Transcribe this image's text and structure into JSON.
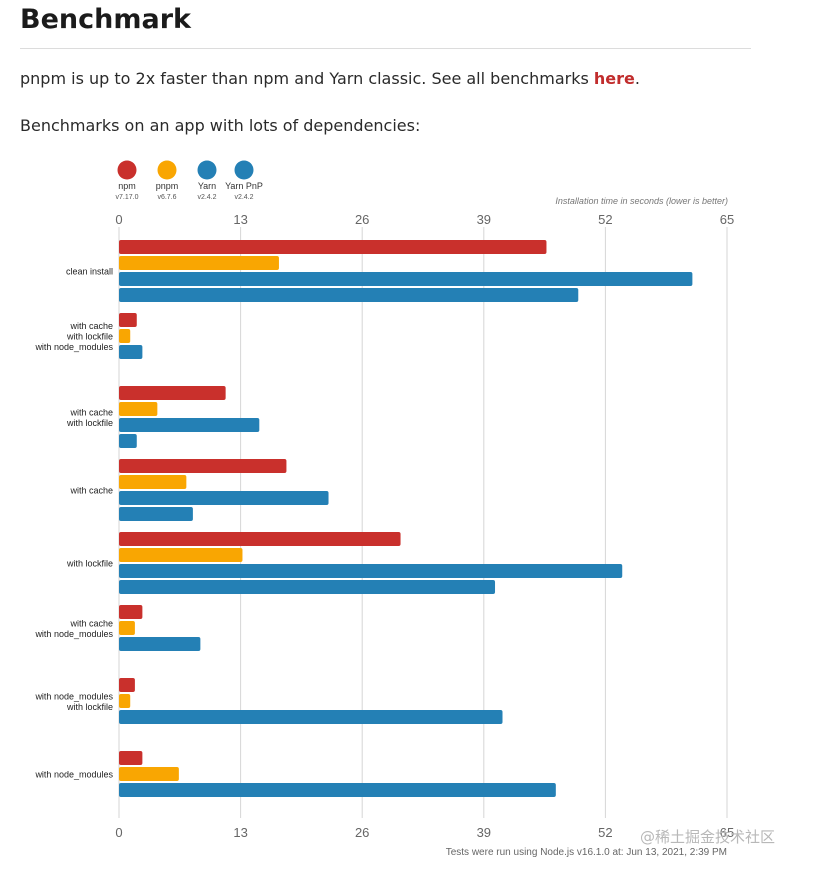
{
  "header": {
    "title": "Benchmark",
    "intro_text": "pnpm is up to 2x faster than npm and Yarn classic. See all benchmarks ",
    "intro_link": "here",
    "intro_end": ".",
    "subheading": "Benchmarks on an app with lots of dependencies:"
  },
  "watermark": "@稀土掘金技术社区",
  "chart_data": {
    "type": "bar",
    "orientation": "horizontal",
    "axis_title": "Installation time in seconds (lower is better)",
    "xlim": [
      0,
      65
    ],
    "xticks": [
      0,
      13,
      26,
      39,
      52,
      65
    ],
    "grid": true,
    "legend_position": "top-left",
    "footer_note": "Tests were run using Node.js v16.1.0 at: Jun 13, 2021, 2:39 PM",
    "categories": [
      [
        "clean install"
      ],
      [
        "with cache",
        "with lockfile",
        "with node_modules"
      ],
      [
        "with cache",
        "with lockfile"
      ],
      [
        "with cache"
      ],
      [
        "with lockfile"
      ],
      [
        "with cache",
        "with node_modules"
      ],
      [
        "with node_modules",
        "with lockfile"
      ],
      [
        "with node_modules"
      ]
    ],
    "series": [
      {
        "name": "npm",
        "version": "v7.17.0",
        "color": "#c9302c",
        "values": [
          45.7,
          1.9,
          11.4,
          17.9,
          30.1,
          2.5,
          1.7,
          2.5
        ]
      },
      {
        "name": "pnpm",
        "version": "v6.7.6",
        "color": "#f9a602",
        "values": [
          17.1,
          1.2,
          4.1,
          7.2,
          13.2,
          1.7,
          1.2,
          6.4
        ]
      },
      {
        "name": "Yarn",
        "version": "v2.4.2",
        "color": "#2480b5",
        "values": [
          61.3,
          2.5,
          15.0,
          22.4,
          53.8,
          8.7,
          41.0,
          46.7
        ]
      },
      {
        "name": "Yarn PnP",
        "version": "v2.4.2",
        "color": "#2480b5",
        "values": [
          49.1,
          0,
          1.9,
          7.9,
          40.2,
          0,
          0,
          0
        ]
      }
    ]
  }
}
